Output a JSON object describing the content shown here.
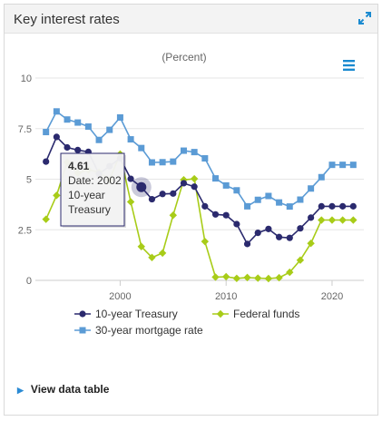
{
  "card": {
    "title": "Key interest rates",
    "footer_link": "View data table",
    "icons": {
      "expand": "expand-arrows-icon",
      "menu": "hamburger-menu-icon",
      "footer": "triangle-right-icon"
    }
  },
  "chart_data": {
    "type": "line",
    "title": "",
    "subtitle": "(Percent)",
    "xlabel": "",
    "ylabel": "",
    "xlim": [
      1992,
      2023
    ],
    "ylim": [
      0,
      10
    ],
    "x_ticks": [
      "2000",
      "2010",
      "2020"
    ],
    "y_ticks": [
      "0",
      "2.5",
      "5",
      "7.5",
      "10"
    ],
    "grid": "horizontal",
    "legend_position": "bottom",
    "colors": {
      "treasury": "#2b2a6e",
      "fedfunds": "#a8cc18",
      "mortgage": "#5b9bd5"
    },
    "x": [
      1993,
      1994,
      1995,
      1996,
      1997,
      1998,
      1999,
      2000,
      2001,
      2002,
      2003,
      2004,
      2005,
      2006,
      2007,
      2008,
      2009,
      2010,
      2011,
      2012,
      2013,
      2014,
      2015,
      2016,
      2017,
      2018,
      2019,
      2020,
      2021,
      2022
    ],
    "series": [
      {
        "name": "10-year Treasury",
        "key": "treasury",
        "marker": "circle",
        "values": [
          5.87,
          7.09,
          6.57,
          6.44,
          6.35,
          5.26,
          5.64,
          6.03,
          5.02,
          4.61,
          4.01,
          4.27,
          4.29,
          4.8,
          4.63,
          3.66,
          3.26,
          3.22,
          2.78,
          1.8,
          2.35,
          2.54,
          2.14,
          2.1,
          2.57,
          3.1,
          3.66,
          3.66,
          3.66,
          3.66
        ]
      },
      {
        "name": "Federal funds",
        "key": "fedfunds",
        "marker": "diamond",
        "values": [
          3.02,
          4.2,
          5.84,
          5.3,
          5.46,
          5.35,
          4.97,
          6.24,
          3.88,
          1.67,
          1.13,
          1.35,
          3.22,
          4.97,
          5.02,
          1.92,
          0.16,
          0.18,
          0.1,
          0.14,
          0.11,
          0.09,
          0.13,
          0.4,
          1.0,
          1.83,
          2.98,
          2.98,
          2.98,
          2.98
        ]
      },
      {
        "name": "30-year mortgage rate",
        "key": "mortgage",
        "marker": "square",
        "values": [
          7.33,
          8.35,
          7.95,
          7.8,
          7.6,
          6.94,
          7.44,
          8.05,
          6.97,
          6.54,
          5.83,
          5.84,
          5.87,
          6.41,
          6.34,
          6.03,
          5.04,
          4.69,
          4.45,
          3.66,
          3.98,
          4.17,
          3.85,
          3.65,
          3.99,
          4.54,
          5.1,
          5.71,
          5.71,
          5.71
        ]
      }
    ],
    "tooltip": {
      "value": "4.61",
      "date_line": "Date: 2002",
      "series_line1": "10-year",
      "series_line2": "Treasury",
      "series": "10-year Treasury",
      "x": 2002
    }
  }
}
